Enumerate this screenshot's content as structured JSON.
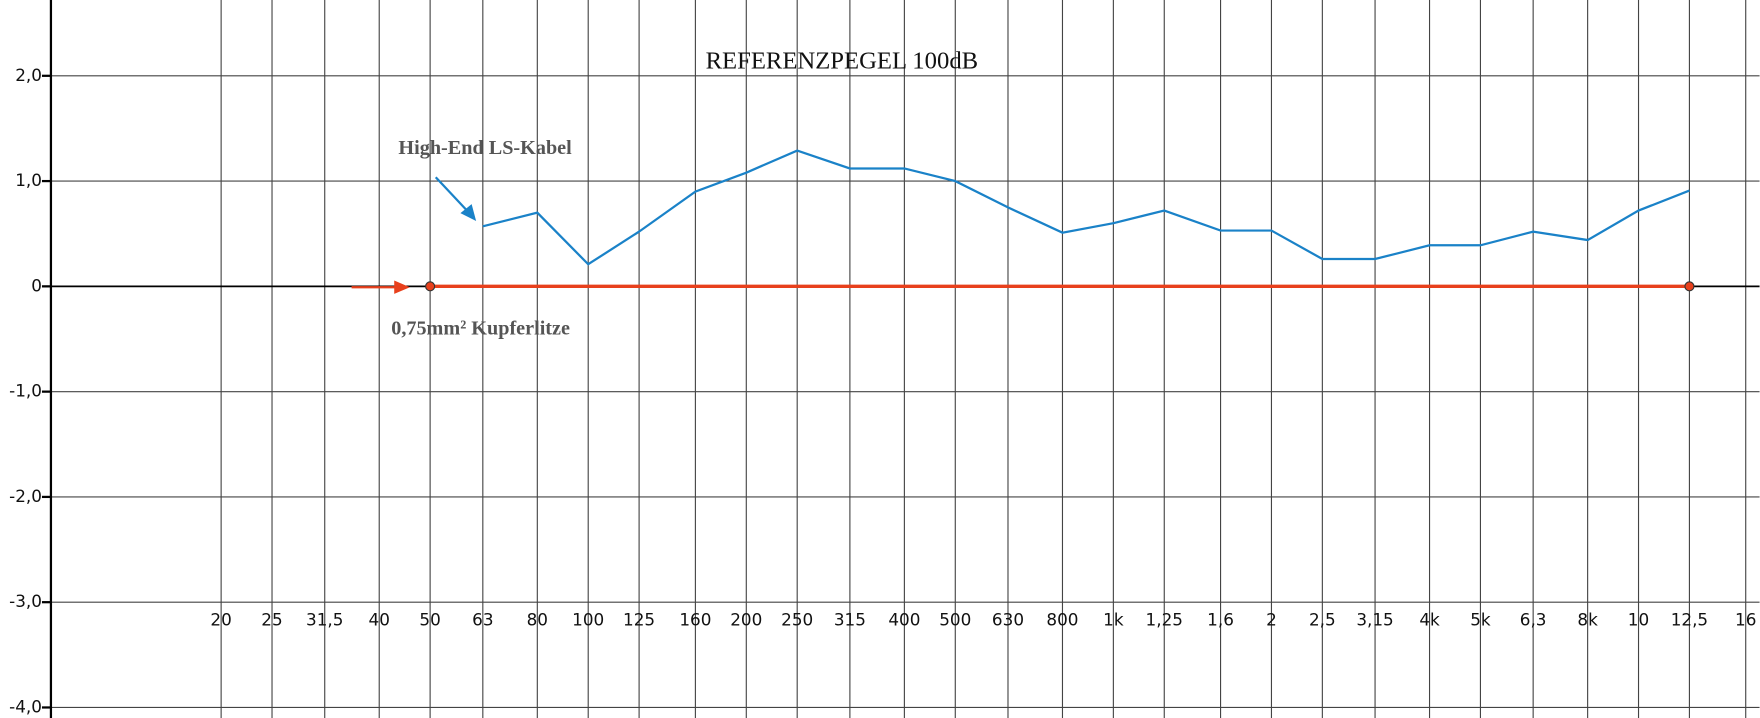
{
  "chart_data": {
    "type": "line",
    "title": "REFERENZPEGEL 100dB",
    "x_scale": "log",
    "xlim": [
      7.6,
      17000
    ],
    "ylim": [
      -4.1,
      2.72
    ],
    "grid": true,
    "xticks": [
      20,
      25,
      {
        "value": 31.5,
        "label": "31,5"
      },
      40,
      50,
      63,
      80,
      100,
      125,
      160,
      200,
      250,
      315,
      400,
      500,
      630,
      800,
      {
        "value": 1000,
        "label": "1k"
      },
      {
        "value": 1250,
        "label": "1,25"
      },
      {
        "value": 1600,
        "label": "1,6"
      },
      {
        "value": 2000,
        "label": "2"
      },
      {
        "value": 2500,
        "label": "2,5"
      },
      {
        "value": 3150,
        "label": "3,15"
      },
      {
        "value": 4000,
        "label": "4k"
      },
      {
        "value": 5000,
        "label": "5k"
      },
      {
        "value": 6300,
        "label": "6,3"
      },
      {
        "value": 8000,
        "label": "8k"
      },
      {
        "value": 10000,
        "label": "10"
      },
      {
        "value": 12500,
        "label": "12,5"
      },
      {
        "value": 16000,
        "label": "16"
      }
    ],
    "yticks": [
      {
        "value": 2,
        "label": "2,0"
      },
      {
        "value": 1,
        "label": "1,0"
      },
      0,
      {
        "value": -1,
        "label": "-1,0"
      },
      {
        "value": -2,
        "label": "-2,0"
      },
      {
        "value": -3,
        "label": "-3,0"
      },
      {
        "value": -4,
        "label": "-4,0"
      }
    ],
    "series": [
      {
        "name": "High-End LS-Kabel",
        "color": "#1a82c8",
        "x": [
          63,
          80,
          100,
          125,
          160,
          200,
          250,
          315,
          400,
          500,
          630,
          800,
          1000,
          1250,
          1600,
          2000,
          2500,
          3150,
          4000,
          5000,
          6300,
          8000,
          10000,
          12500
        ],
        "values": [
          0.57,
          0.7,
          0.21,
          0.52,
          0.9,
          1.08,
          1.29,
          1.12,
          1.12,
          1.0,
          0.75,
          0.51,
          0.6,
          0.72,
          0.53,
          0.53,
          0.26,
          0.26,
          0.39,
          0.39,
          0.52,
          0.44,
          0.72,
          0.91
        ]
      },
      {
        "name": "0,75mm² Kupferlitze",
        "color": "#e8401c",
        "markers": true,
        "x": [
          50,
          12500
        ],
        "values": [
          0,
          0
        ]
      }
    ]
  }
}
